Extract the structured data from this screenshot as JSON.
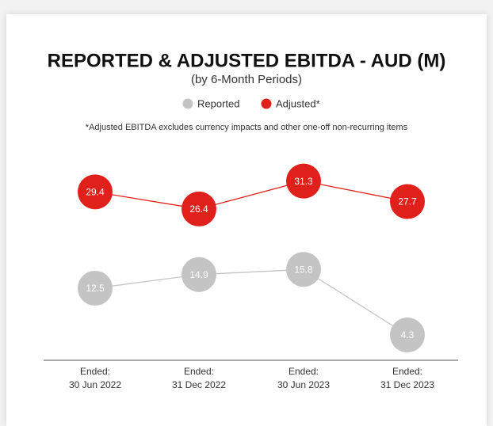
{
  "chart_data": {
    "type": "line",
    "title": "REPORTED & ADJUSTED EBITDA - AUD (M)",
    "subtitle": "(by 6-Month Periods)",
    "note": "*Adjusted EBITDA excludes currency impacts and other one-off non-recurring items",
    "categories": [
      [
        "Ended:",
        "30 Jun 2022"
      ],
      [
        "Ended:",
        "31 Dec 2022"
      ],
      [
        "Ended:",
        "30 Jun 2023"
      ],
      [
        "Ended:",
        "31 Dec 2023"
      ]
    ],
    "series": [
      {
        "name": "Reported",
        "color": "#c4c4c4",
        "values": [
          12.5,
          14.9,
          15.8,
          4.3
        ]
      },
      {
        "name": "Adjusted*",
        "color": "#e0201b",
        "values": [
          29.4,
          26.4,
          31.3,
          27.7
        ]
      }
    ],
    "ylim": [
      0,
      35
    ]
  }
}
